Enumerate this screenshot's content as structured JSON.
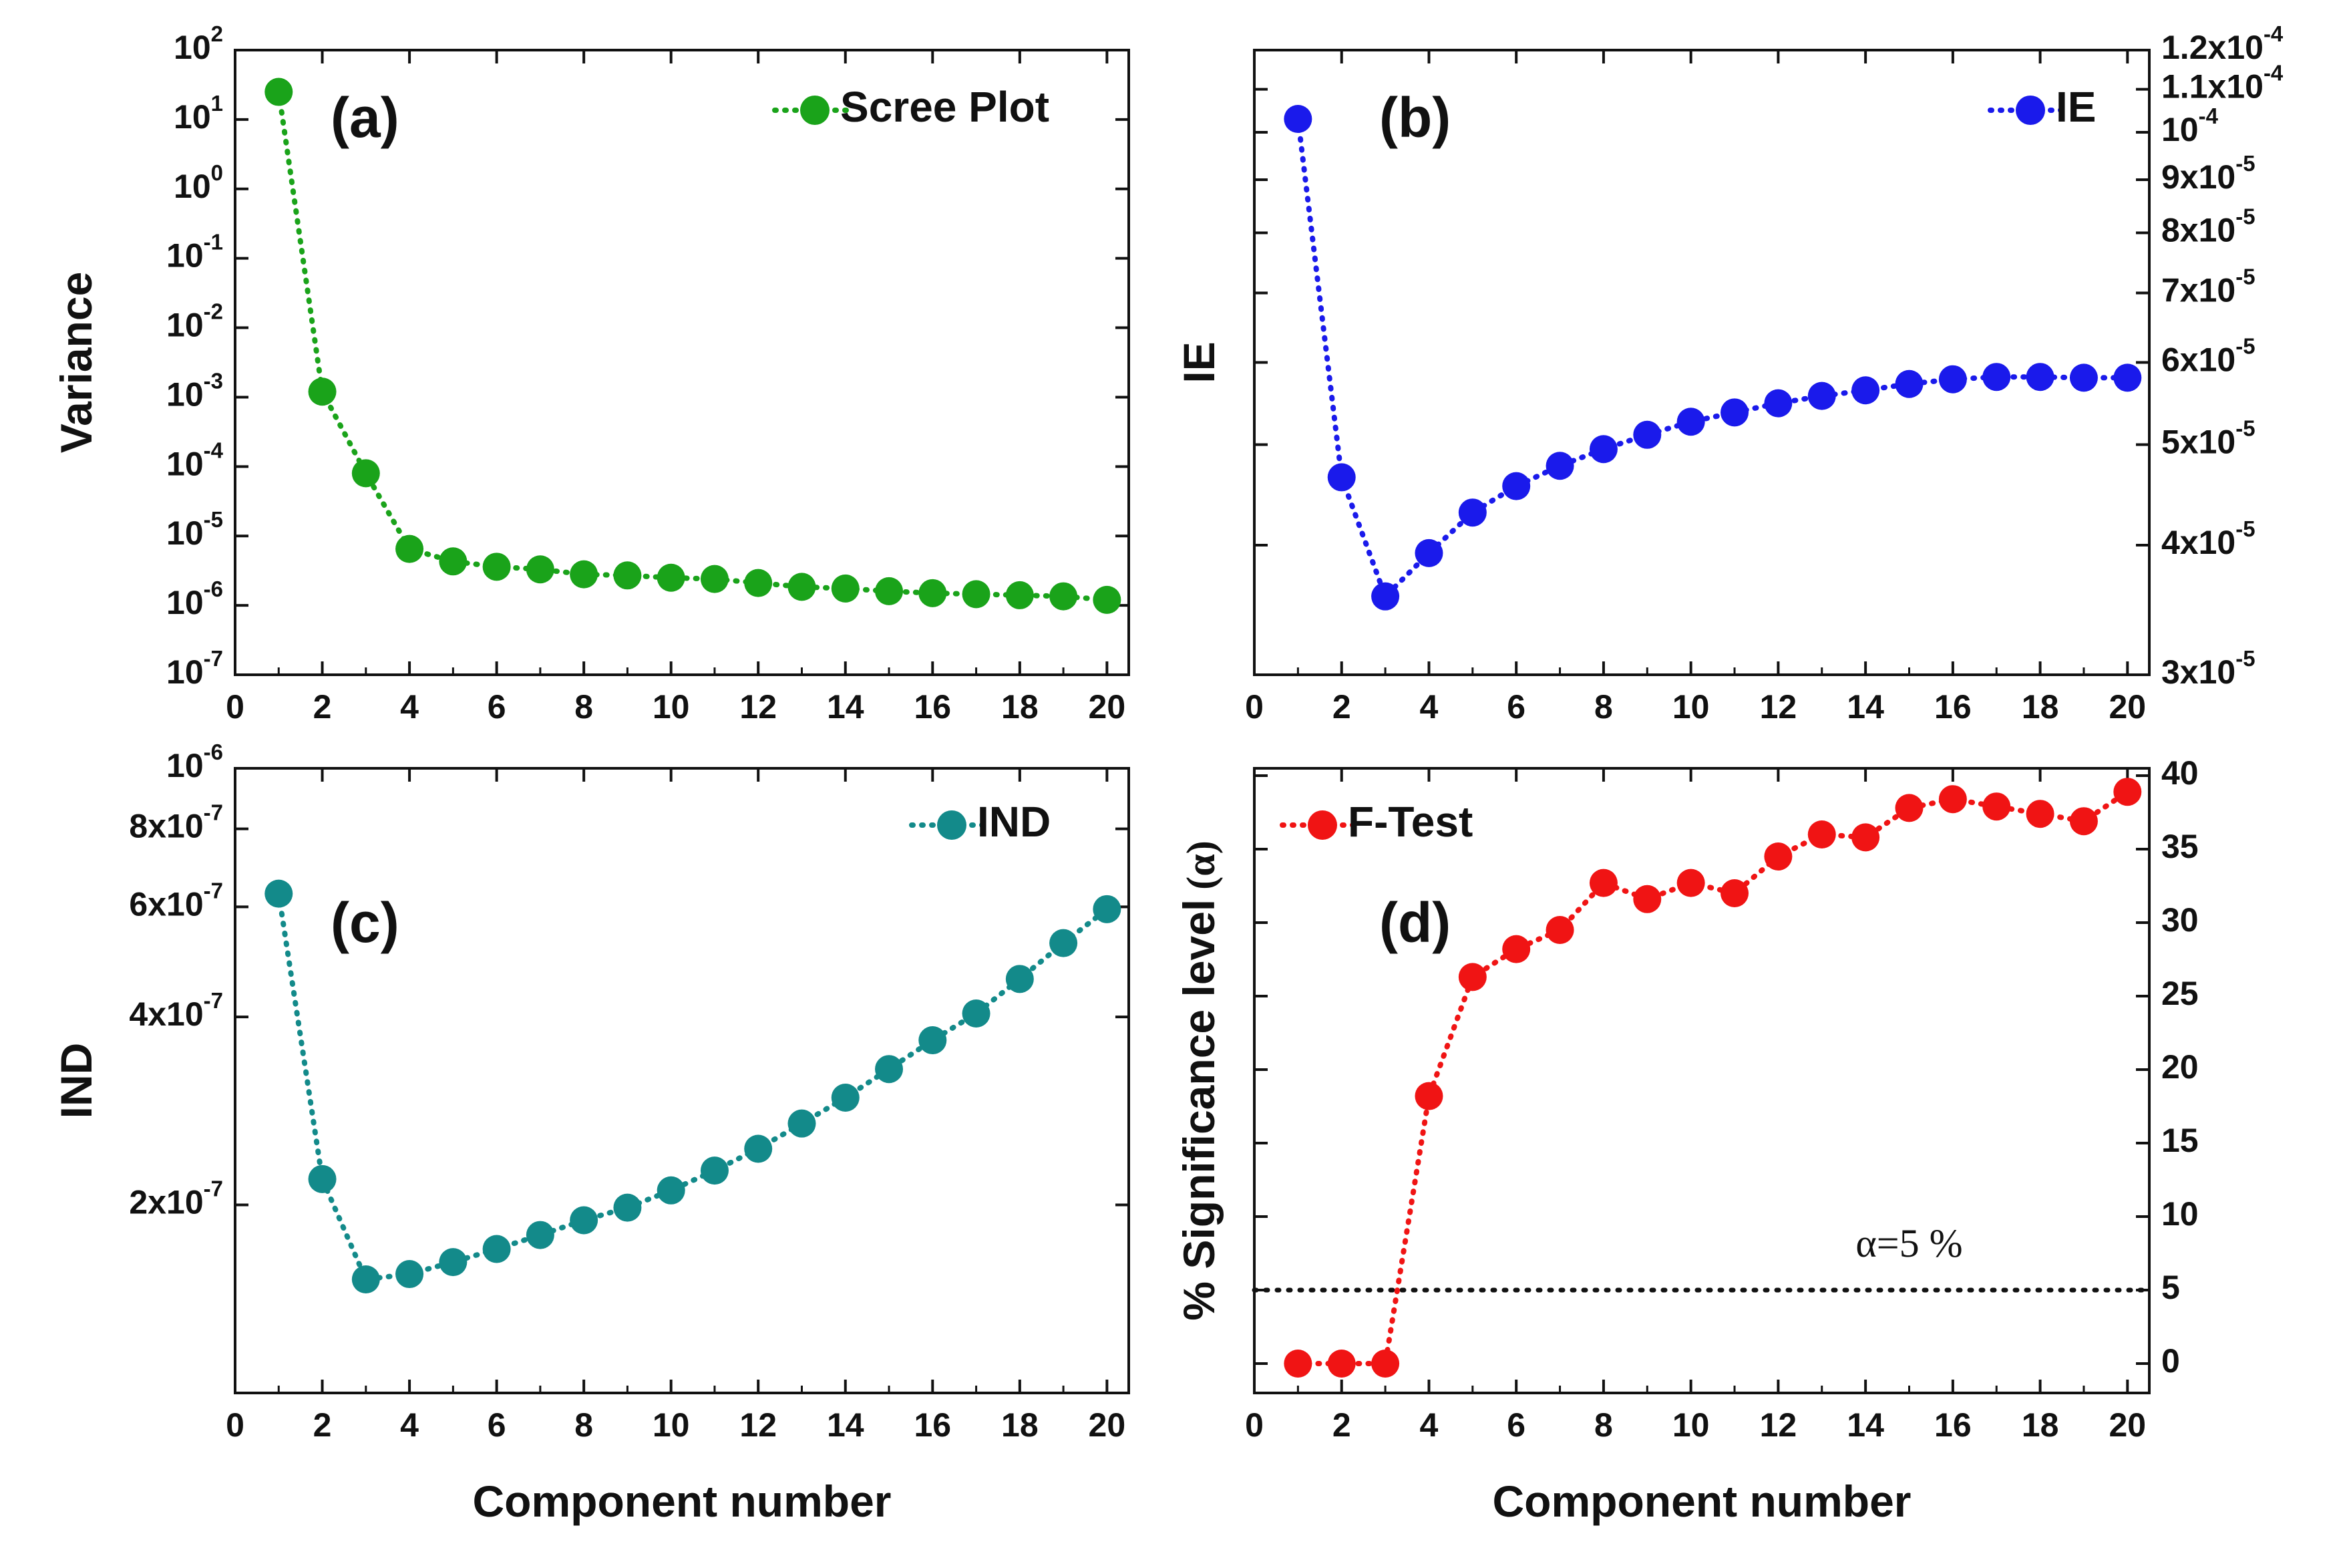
{
  "chart_data": [
    {
      "id": "a",
      "type": "scatter",
      "panel_label": "(a)",
      "legend": "Scree Plot",
      "color": "#1aa31a",
      "xlabel": "",
      "ylabel": "Variance",
      "yscale": "log",
      "xlim": [
        0,
        20.5
      ],
      "ylim": [
        1e-07,
        100
      ],
      "x_ticks": [
        "0",
        "2",
        "4",
        "6",
        "8",
        "10",
        "12",
        "14",
        "16",
        "18",
        "20"
      ],
      "y_ticks": [
        {
          "base": "10",
          "exp": "2"
        },
        {
          "base": "10",
          "exp": "1"
        },
        {
          "base": "10",
          "exp": "0"
        },
        {
          "base": "10",
          "exp": "-1"
        },
        {
          "base": "10",
          "exp": "-2"
        },
        {
          "base": "10",
          "exp": "-3"
        },
        {
          "base": "10",
          "exp": "-4"
        },
        {
          "base": "10",
          "exp": "-5"
        },
        {
          "base": "10",
          "exp": "-6"
        },
        {
          "base": "10",
          "exp": "-7"
        }
      ],
      "x": [
        1,
        2,
        3,
        4,
        5,
        6,
        7,
        8,
        9,
        10,
        11,
        12,
        13,
        14,
        15,
        16,
        17,
        18,
        19,
        20
      ],
      "y": [
        25,
        0.0012,
        8e-05,
        6.5e-06,
        4.3e-06,
        3.6e-06,
        3.3e-06,
        2.8e-06,
        2.7e-06,
        2.5e-06,
        2.4e-06,
        2.1e-06,
        1.85e-06,
        1.75e-06,
        1.6e-06,
        1.5e-06,
        1.45e-06,
        1.4e-06,
        1.35e-06,
        1.2e-06
      ]
    },
    {
      "id": "b",
      "type": "scatter",
      "panel_label": "(b)",
      "legend": "IE",
      "color": "#1a1aeb",
      "xlabel": "",
      "ylabel": "IE",
      "yscale": "log",
      "y_axis_side": "right",
      "xlim": [
        0,
        20.5
      ],
      "ylim": [
        3e-05,
        0.00012
      ],
      "x_ticks": [
        "0",
        "2",
        "4",
        "6",
        "8",
        "10",
        "12",
        "14",
        "16",
        "18",
        "20"
      ],
      "y_ticks": [
        {
          "base": "1.2x10",
          "exp": "-4"
        },
        {
          "base": "1.1x10",
          "exp": "-4"
        },
        {
          "base": "10",
          "exp": "-4"
        },
        {
          "base": "9x10",
          "exp": "-5"
        },
        {
          "base": "8x10",
          "exp": "-5"
        },
        {
          "base": "7x10",
          "exp": "-5"
        },
        {
          "base": "6x10",
          "exp": "-5"
        },
        {
          "base": "5x10",
          "exp": "-5"
        },
        {
          "base": "4x10",
          "exp": "-5"
        },
        {
          "base": "3x10",
          "exp": "-5"
        }
      ],
      "x": [
        1,
        2,
        3,
        4,
        5,
        6,
        7,
        8,
        9,
        10,
        11,
        12,
        13,
        14,
        15,
        16,
        17,
        18,
        19,
        20
      ],
      "y": [
        0.000103,
        4.65e-05,
        3.57e-05,
        3.93e-05,
        4.3e-05,
        4.56e-05,
        4.77e-05,
        4.95e-05,
        5.11e-05,
        5.26e-05,
        5.37e-05,
        5.48e-05,
        5.57e-05,
        5.64e-05,
        5.72e-05,
        5.78e-05,
        5.81e-05,
        5.81e-05,
        5.8e-05,
        5.8e-05
      ]
    },
    {
      "id": "c",
      "type": "scatter",
      "panel_label": "(c)",
      "legend": "IND",
      "color": "#138a8a",
      "xlabel": "Component number",
      "ylabel": "IND",
      "yscale": "log",
      "xlim": [
        0,
        20.5
      ],
      "ylim": [
        1e-07,
        1e-06
      ],
      "x_ticks": [
        "0",
        "2",
        "4",
        "6",
        "8",
        "10",
        "12",
        "14",
        "16",
        "18",
        "20"
      ],
      "y_ticks": [
        {
          "base": "10",
          "exp": "-6"
        },
        {
          "base": "8x10",
          "exp": "-7"
        },
        {
          "base": "6x10",
          "exp": "-7"
        },
        {
          "base": "4x10",
          "exp": "-7"
        },
        {
          "base": "2x10",
          "exp": "-7"
        }
      ],
      "x": [
        1,
        2,
        3,
        4,
        5,
        6,
        7,
        8,
        9,
        10,
        11,
        12,
        13,
        14,
        15,
        16,
        17,
        18,
        19,
        20
      ],
      "y": [
        6.3e-07,
        2.2e-07,
        1.52e-07,
        1.55e-07,
        1.62e-07,
        1.7e-07,
        1.79e-07,
        1.89e-07,
        1.98e-07,
        2.11e-07,
        2.27e-07,
        2.46e-07,
        2.7e-07,
        2.97e-07,
        3.3e-07,
        3.67e-07,
        4.05e-07,
        4.6e-07,
        5.25e-07,
        5.95e-07
      ]
    },
    {
      "id": "d",
      "type": "scatter",
      "panel_label": "(d)",
      "legend": "F-Test",
      "color": "#f01414",
      "xlabel": "Component number",
      "ylabel": "% Significance level",
      "ylabel_symbol": "(α)",
      "yscale": "linear",
      "y_axis_side": "right",
      "xlim": [
        0,
        20.5
      ],
      "ylim": [
        -2,
        40.5
      ],
      "x_ticks": [
        "0",
        "2",
        "4",
        "6",
        "8",
        "10",
        "12",
        "14",
        "16",
        "18",
        "20"
      ],
      "y_ticks": [
        "0",
        "5",
        "10",
        "15",
        "20",
        "25",
        "30",
        "35",
        "40"
      ],
      "x": [
        1,
        2,
        3,
        4,
        5,
        6,
        7,
        8,
        9,
        10,
        11,
        12,
        13,
        14,
        15,
        16,
        17,
        18,
        19,
        20
      ],
      "y": [
        0,
        0,
        0,
        18.2,
        26.3,
        28.2,
        29.5,
        32.7,
        31.6,
        32.7,
        32,
        34.5,
        36,
        35.8,
        37.8,
        38.4,
        37.9,
        37.4,
        36.9,
        38.9
      ],
      "threshold": {
        "value": 5,
        "label": "α=5 %"
      }
    }
  ]
}
